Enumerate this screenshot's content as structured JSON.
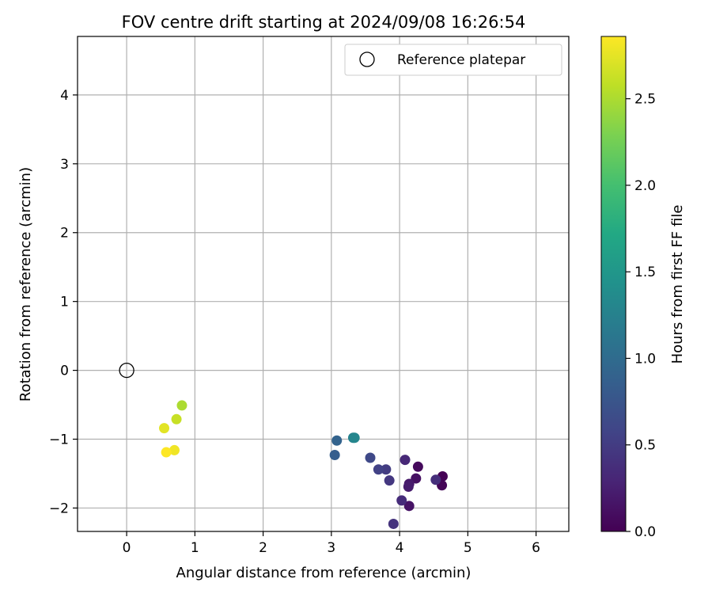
{
  "chart_data": {
    "type": "scatter",
    "title": "FOV centre drift starting at 2024/09/08 16:26:54",
    "xlabel": "Angular distance from reference (arcmin)",
    "ylabel": "Rotation from reference (arcmin)",
    "xlim": [
      -0.72,
      6.48
    ],
    "ylim": [
      -2.34,
      4.85
    ],
    "xticks": [
      0,
      1,
      2,
      3,
      4,
      5,
      6
    ],
    "yticks": [
      -2,
      -1,
      0,
      1,
      2,
      3,
      4
    ],
    "grid": true,
    "legend": {
      "placement": "top-right",
      "entries": [
        {
          "label": "Reference platepar",
          "marker": "open-circle"
        }
      ]
    },
    "reference_point": {
      "x": 0,
      "y": 0
    },
    "colorbar": {
      "label": "Hours from first FF file",
      "range": [
        0.0,
        2.86
      ],
      "ticks": [
        0.0,
        0.5,
        1.0,
        1.5,
        2.0,
        2.5
      ],
      "colormap": "viridis"
    },
    "points": [
      {
        "x": 4.63,
        "y": -1.54,
        "c": 0.0
      },
      {
        "x": 4.62,
        "y": -1.67,
        "c": 0.03
      },
      {
        "x": 4.27,
        "y": -1.4,
        "c": 0.07
      },
      {
        "x": 4.24,
        "y": -1.57,
        "c": 0.12
      },
      {
        "x": 4.14,
        "y": -1.65,
        "c": 0.2
      },
      {
        "x": 4.14,
        "y": -1.97,
        "c": 0.15
      },
      {
        "x": 4.13,
        "y": -1.69,
        "c": 0.22
      },
      {
        "x": 4.53,
        "y": -1.59,
        "c": 0.38
      },
      {
        "x": 4.08,
        "y": -1.3,
        "c": 0.32
      },
      {
        "x": 4.03,
        "y": -1.89,
        "c": 0.36
      },
      {
        "x": 3.91,
        "y": -2.23,
        "c": 0.42
      },
      {
        "x": 3.85,
        "y": -1.6,
        "c": 0.46
      },
      {
        "x": 3.8,
        "y": -1.44,
        "c": 0.5
      },
      {
        "x": 3.69,
        "y": -1.44,
        "c": 0.55
      },
      {
        "x": 3.57,
        "y": -1.27,
        "c": 0.62
      },
      {
        "x": 3.05,
        "y": -1.23,
        "c": 0.85
      },
      {
        "x": 3.08,
        "y": -1.02,
        "c": 0.9
      },
      {
        "x": 3.32,
        "y": -0.98,
        "c": 1.25
      },
      {
        "x": 3.34,
        "y": -0.98,
        "c": 1.3
      },
      {
        "x": 0.81,
        "y": -0.51,
        "c": 2.5
      },
      {
        "x": 0.73,
        "y": -0.71,
        "c": 2.62
      },
      {
        "x": 0.55,
        "y": -0.84,
        "c": 2.74
      },
      {
        "x": 0.7,
        "y": -1.16,
        "c": 2.8
      },
      {
        "x": 0.58,
        "y": -1.19,
        "c": 2.86
      }
    ],
    "colors": {
      "grid": "#b0b0b0",
      "axes": "#000000",
      "legend_border": "#cccccc"
    }
  }
}
